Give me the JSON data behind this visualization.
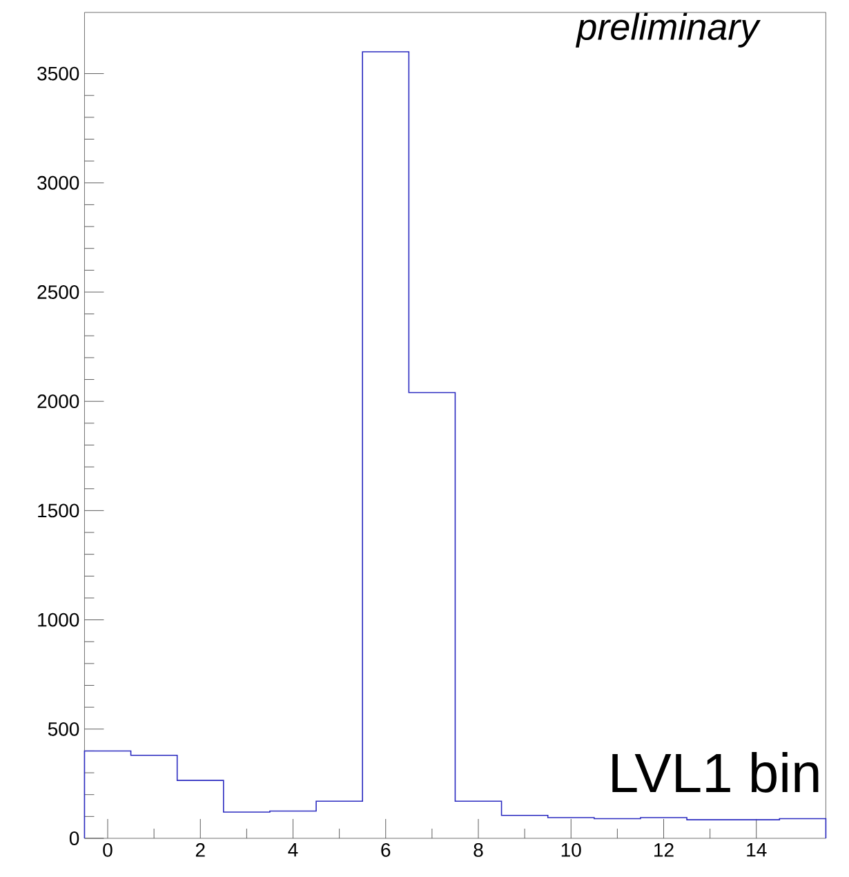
{
  "chart_data": {
    "type": "histogram",
    "bins": [
      -0.5,
      0.5,
      1.5,
      2.5,
      3.5,
      4.5,
      5.5,
      6.5,
      7.5,
      8.5,
      9.5,
      10.5,
      11.5,
      12.5,
      13.5,
      14.5,
      15.5
    ],
    "values": [
      400,
      380,
      265,
      120,
      125,
      170,
      3600,
      2040,
      170,
      105,
      95,
      90,
      95,
      85,
      85,
      90
    ],
    "color": "#2a2ac0",
    "xlim": [
      -0.5,
      15.5
    ],
    "ylim": [
      0,
      3780
    ],
    "xticks": [
      0,
      2,
      4,
      6,
      8,
      10,
      12,
      14
    ],
    "yticks": [
      0,
      500,
      1000,
      1500,
      2000,
      2500,
      3000,
      3500
    ],
    "annotations": [
      "preliminary",
      "LVL1 bin"
    ]
  }
}
